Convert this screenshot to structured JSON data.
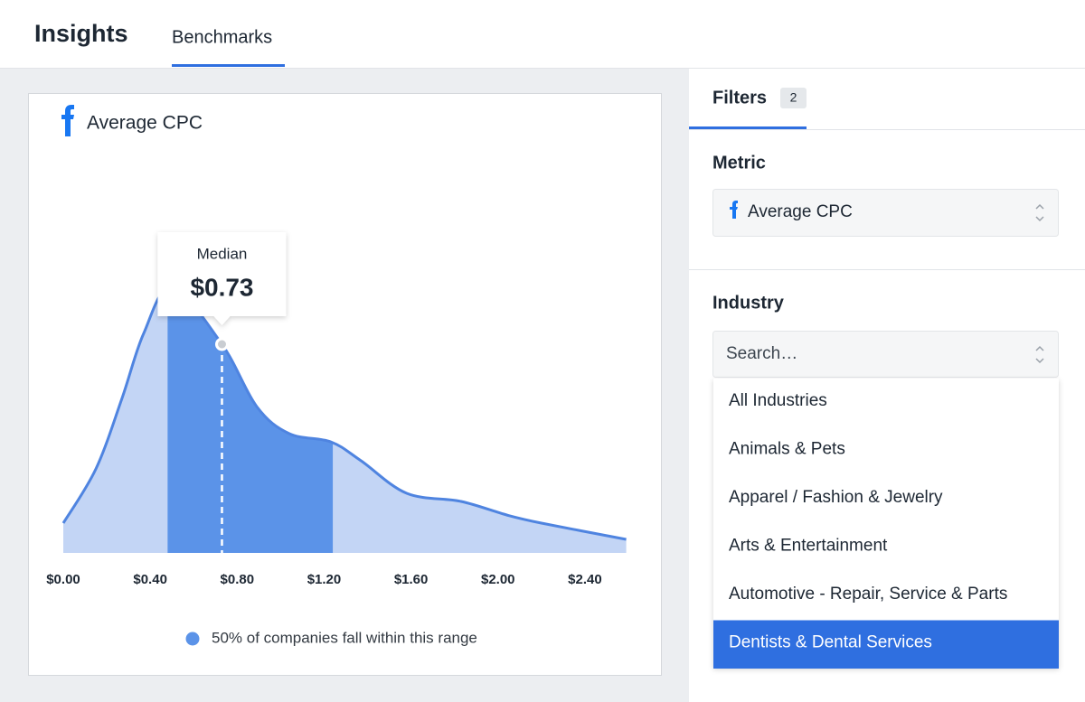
{
  "header": {
    "title": "Insights",
    "tabs": [
      {
        "label": "Benchmarks",
        "active": true
      }
    ]
  },
  "chart_data": {
    "type": "area",
    "title": "Average CPC",
    "x": [
      0,
      0.15,
      0.27,
      0.37,
      0.5,
      0.73,
      0.89,
      1.04,
      1.23,
      1.37,
      1.58,
      1.83,
      2.04,
      2.2,
      2.59
    ],
    "values": [
      11,
      31,
      57,
      81,
      98,
      77,
      54,
      44,
      41,
      34,
      22,
      19,
      14,
      11,
      5
    ],
    "xlim": [
      0,
      2.6
    ],
    "ylim": [
      0,
      100
    ],
    "xticks": [
      {
        "value": 0,
        "label": "$0.00"
      },
      {
        "value": 0.4,
        "label": "$0.40"
      },
      {
        "value": 0.8,
        "label": "$0.80"
      },
      {
        "value": 1.2,
        "label": "$1.20"
      },
      {
        "value": 1.6,
        "label": "$1.60"
      },
      {
        "value": 2.0,
        "label": "$2.00"
      },
      {
        "value": 2.4,
        "label": "$2.40"
      }
    ],
    "range": [
      0.48,
      1.24
    ],
    "median": {
      "label": "Median",
      "value": 0.73,
      "value_label": "$0.73"
    },
    "legend": "50% of companies fall within this range",
    "color": "#c3d5f5",
    "highlight_color": "#5b93e8",
    "line_color": "#4f84e0"
  },
  "filters": {
    "tab": "Filters",
    "count": 2,
    "metric": {
      "label": "Metric",
      "value": "Average CPC"
    },
    "industry": {
      "label": "Industry",
      "placeholder": "Search…",
      "options": [
        "All Industries",
        "Animals & Pets",
        "Apparel / Fashion & Jewelry",
        "Arts & Entertainment",
        "Automotive - Repair, Service & Parts",
        "Dentists & Dental Services"
      ],
      "selected": 5
    }
  }
}
